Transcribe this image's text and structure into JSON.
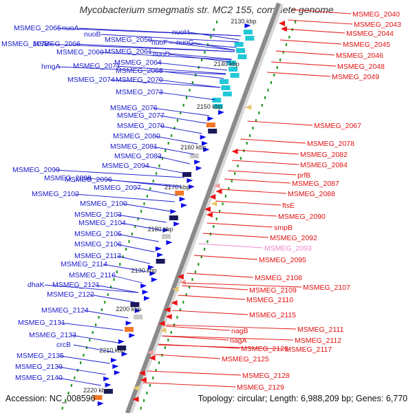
{
  "title": "Mycobacterium smegmatis str. MC2 155, complete genome",
  "footer": {
    "accession": "Accession: NC_008596",
    "topology": "Topology: circular; Length: 6,988,209 bp; Genes: 6,770"
  },
  "colors": {
    "left_label": "#1a1acc",
    "right_label": "#e01010",
    "faded_label": "#ee88cc",
    "forward_gene": "#0a0aee",
    "reverse_gene": "#ee1111",
    "cyan_block": "#22c8d8",
    "backbone": "#8a8a8a",
    "dots": "#229922"
  },
  "scale_labels": [
    "2130 kbp",
    "2140 kbp",
    "2150 kbp",
    "2160 kbp",
    "2170 kbp",
    "2180 kbp",
    "2190 kbp",
    "2200 kbp",
    "2210 kbp",
    "2220 kbp"
  ],
  "left_labels": [
    "MSMEG_2065",
    "nuoA",
    "nuoB",
    "MSMEG_2072",
    "MSMEG_2066",
    "MSMEG_2059",
    "nuoH",
    "nuoF",
    "nuoG",
    "MSMEG_2069",
    "MSMEG_2061",
    "nuoD",
    "hmgA",
    "MSMEG_2071",
    "MSMEG_2064",
    "MSMEG_2068",
    "MSMEG_2074",
    "MSMEG_2070",
    "MSMEG_2073",
    "MSMEG_2076",
    "MSMEG_2077",
    "MSMEG_2079",
    "MSMEG_2080",
    "MSMEG_2081",
    "MSMEG_2083",
    "MSMEG_2094",
    "MSMEG_2099",
    "MSMEG_2096",
    "MSMEG_2098",
    "MSMEG_2097",
    "MSMEG_2102",
    "MSMEG_2100",
    "MSMEG_2103",
    "MSMEG_2104",
    "MSMEG_2105",
    "MSMEG_2106",
    "MSMEG_2113",
    "MSMEG_2114",
    "MSMEG_2116",
    "dhaK",
    "MSMEG_2121",
    "MSMEG_2122",
    "MSMEG_2124",
    "MSMEG_2131",
    "MSMEG_2133",
    "crcB",
    "MSMEG_2135",
    "MSMEG_2139",
    "MSMEG_2140"
  ],
  "right_labels": [
    "MSMEG_2040",
    "MSMEG_2043",
    "MSMEG_2044",
    "MSMEG_2045",
    "MSMEG_2046",
    "MSMEG_2048",
    "MSMEG_2049",
    "MSMEG_2067",
    "MSMEG_2078",
    "MSMEG_2082",
    "MSMEG_2084",
    "prfB",
    "MSMEG_2087",
    "MSMEG_2088",
    "ftsE",
    "MSMEG_2090",
    "smpB",
    "MSMEG_2092",
    "MSMEG_2093",
    "MSMEG_2095",
    "MSMEG_2108",
    "MSMEG_2107",
    "MSMEG_2109",
    "MSMEG_2110",
    "MSMEG_2115",
    "MSMEG_2111",
    "nagB",
    "MSMEG_2112",
    "nagA",
    "MSMEG_2120",
    "MSMEG_2117",
    "MSMEG_2125",
    "MSMEG_2128",
    "MSMEG_2129"
  ]
}
